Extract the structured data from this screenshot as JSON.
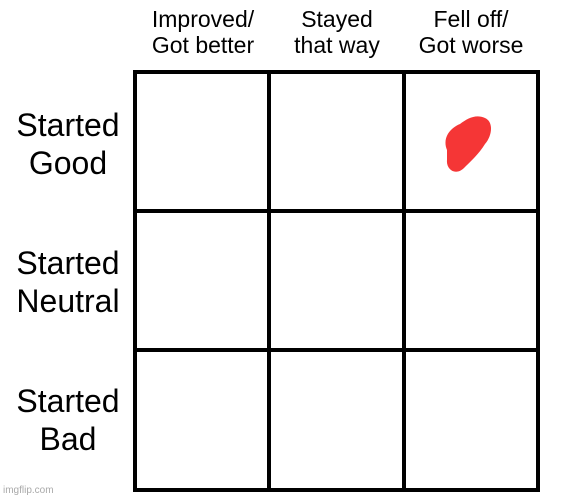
{
  "columns": [
    {
      "line1": "Improved/",
      "line2": "Got better"
    },
    {
      "line1": "Stayed",
      "line2": "that way"
    },
    {
      "line1": "Fell off/",
      "line2": "Got worse"
    }
  ],
  "rows": [
    {
      "line1": "Started",
      "line2": "Good"
    },
    {
      "line1": "Started",
      "line2": "Neutral"
    },
    {
      "line1": "Started",
      "line2": "Bad"
    }
  ],
  "marker": {
    "row": "Started Good",
    "column": "Fell off/ Got worse",
    "color": "#f53636",
    "shape": "red-blob"
  },
  "colors": {
    "grid": "#000000",
    "background": "#ffffff",
    "marker": "#f53636"
  },
  "watermark": "imgflip.com"
}
